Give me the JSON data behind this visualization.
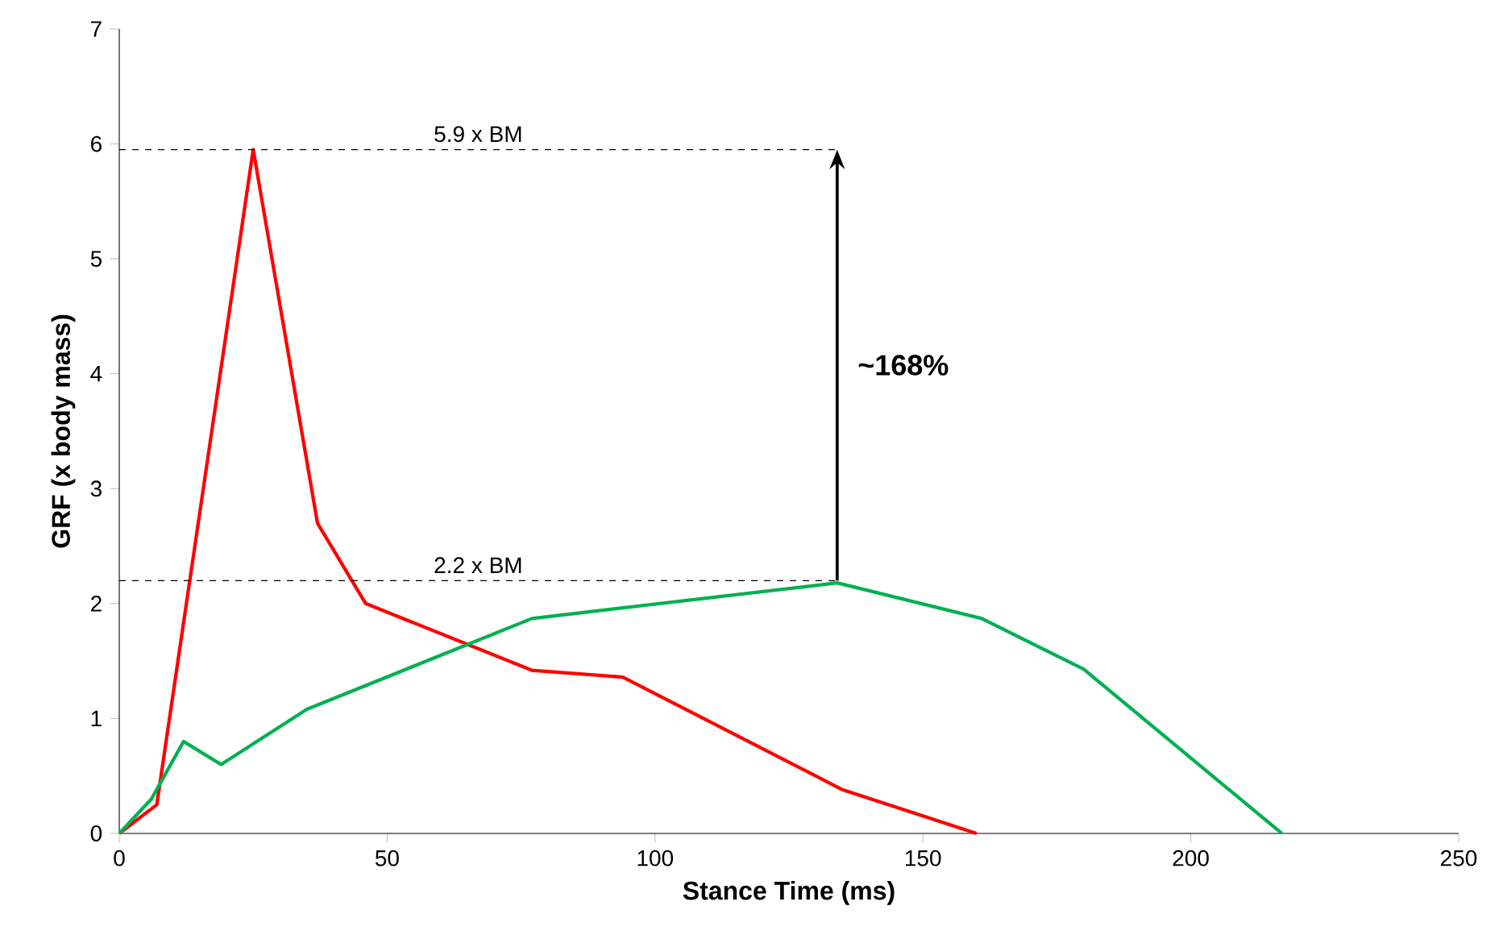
{
  "chart_data": {
    "type": "line",
    "xlabel": "Stance Time (ms)",
    "ylabel": "GRF (x body mass)",
    "xlim": [
      0,
      250
    ],
    "xticks": [
      0,
      50,
      100,
      150,
      200,
      250
    ],
    "ylim": [
      0,
      7
    ],
    "yticks": [
      0,
      1,
      2,
      3,
      4,
      5,
      6,
      7
    ],
    "grid": false,
    "marker": "none",
    "line_style": "solid",
    "series": [
      {
        "color": "#ff0000",
        "x": [
          0,
          7,
          25,
          37,
          46,
          77,
          94,
          135,
          160
        ],
        "values": [
          0,
          0.25,
          5.95,
          2.7,
          2.0,
          1.42,
          1.36,
          0.38,
          0
        ]
      },
      {
        "color": "#00b050",
        "x": [
          0,
          6,
          12,
          19,
          35,
          77,
          134,
          161,
          180,
          217
        ],
        "values": [
          0,
          0.3,
          0.8,
          0.6,
          1.08,
          1.87,
          2.18,
          1.87,
          1.43,
          0
        ]
      }
    ],
    "ref_lines": [
      {
        "axis": "y",
        "value": 5.95,
        "label": "5.9 x BM",
        "line_style": "dashed",
        "color": "#000000"
      },
      {
        "axis": "y",
        "value": 2.2,
        "label": "2.2 x BM",
        "line_style": "dashed",
        "color": "#000000"
      }
    ],
    "annotations": [
      "~168%"
    ]
  }
}
